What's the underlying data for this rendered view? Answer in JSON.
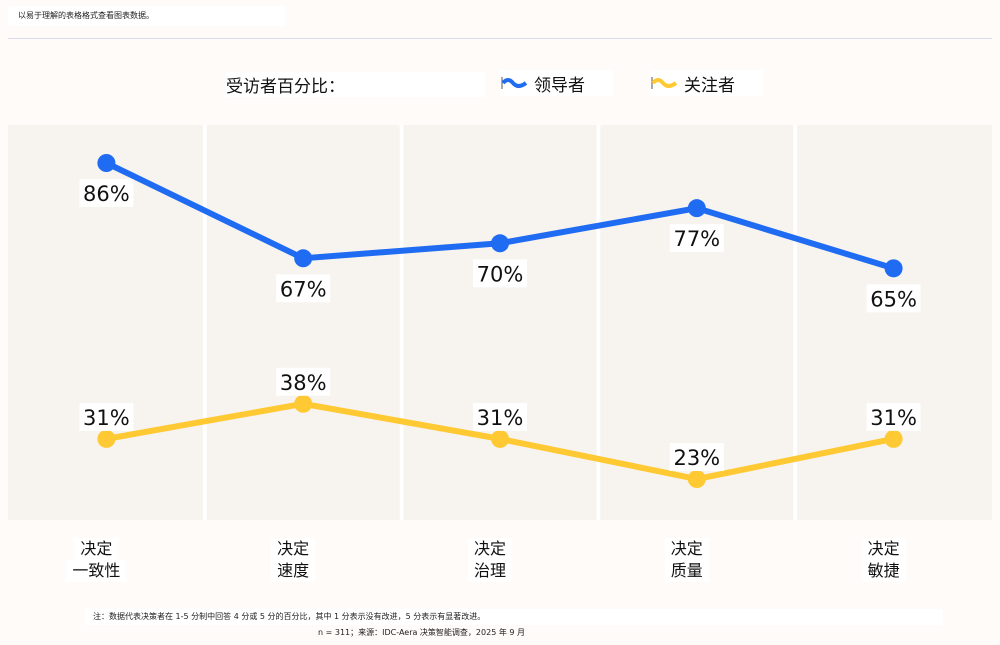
{
  "header": {
    "note": "以易于理解的表格格式查看图表数据。"
  },
  "legend": {
    "title": "受访者百分比：",
    "items": [
      {
        "label": "领导者",
        "color": "#1f6bf2",
        "icon": "wave-line-icon"
      },
      {
        "label": "关注者",
        "color": "#ffc933",
        "icon": "wave-line-icon"
      }
    ]
  },
  "chart_data": {
    "type": "line",
    "categories": [
      [
        "决定",
        "一致性"
      ],
      [
        "决定",
        "速度"
      ],
      [
        "决定",
        "治理"
      ],
      [
        "决定",
        "质量"
      ],
      [
        "决定",
        "敏捷"
      ]
    ],
    "series": [
      {
        "name": "领导者",
        "values": [
          86,
          67,
          70,
          77,
          65
        ],
        "labels": [
          "86%",
          "67%",
          "70%",
          "77%",
          "65%"
        ],
        "color": "#1f6bf2"
      },
      {
        "name": "关注者",
        "values": [
          31,
          38,
          31,
          23,
          31
        ],
        "labels": [
          "31%",
          "38%",
          "31%",
          "23%",
          "31%"
        ],
        "color": "#ffc933"
      }
    ],
    "unit": "%",
    "grid": false,
    "legend_position": "top",
    "background": "#f7f3ef"
  },
  "footer": {
    "note": "注：数据代表决策者在 1-5 分制中回答 4 分或 5 分的百分比，其中 1 分表示没有改进，5 分表示有显著改进。",
    "source": "n = 311；来源：IDC-Aera 决策智能调查，2025 年 9 月"
  }
}
